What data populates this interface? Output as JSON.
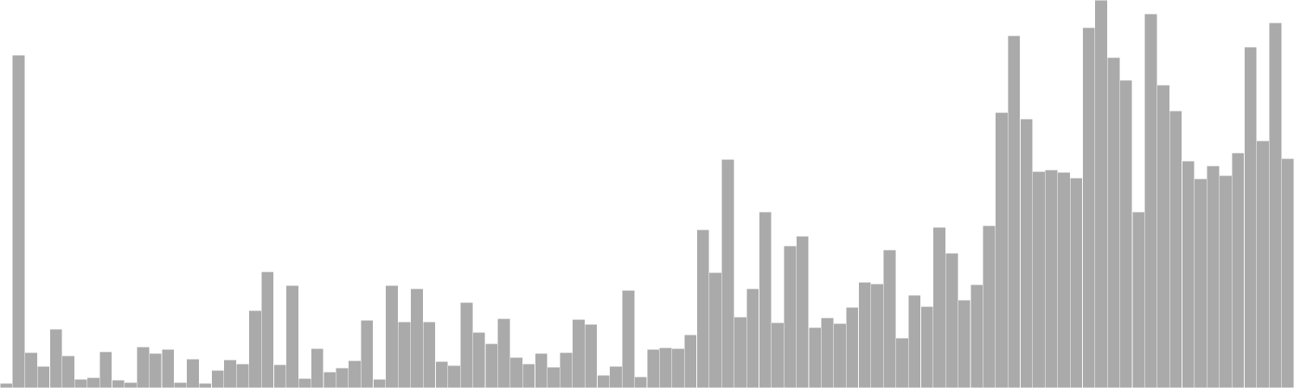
{
  "chart_data": {
    "type": "bar",
    "title": "",
    "xlabel": "",
    "ylabel": "",
    "ylim": [
      0,
      480
    ],
    "grid": false,
    "legend": "none",
    "bar_color": "#aaaaaa",
    "values": [
      6,
      412,
      44,
      27,
      73,
      40,
      11,
      13,
      45,
      10,
      7,
      51,
      43,
      48,
      7,
      36,
      6,
      22,
      35,
      30,
      96,
      144,
      29,
      127,
      12,
      49,
      20,
      25,
      34,
      84,
      11,
      127,
      82,
      123,
      82,
      33,
      28,
      106,
      69,
      55,
      86,
      38,
      30,
      43,
      26,
      44,
      85,
      79,
      16,
      27,
      121,
      14,
      48,
      50,
      49,
      66,
      196,
      143,
      283,
      88,
      123,
      218,
      81,
      176,
      188,
      75,
      87,
      80,
      100,
      131,
      129,
      171,
      62,
      115,
      101,
      199,
      167,
      109,
      128,
      201,
      341,
      436,
      333,
      268,
      270,
      267,
      260,
      446,
      480,
      409,
      381,
      218,
      463,
      375,
      343,
      281,
      259,
      275,
      263,
      291,
      422,
      306,
      452,
      284
    ]
  }
}
